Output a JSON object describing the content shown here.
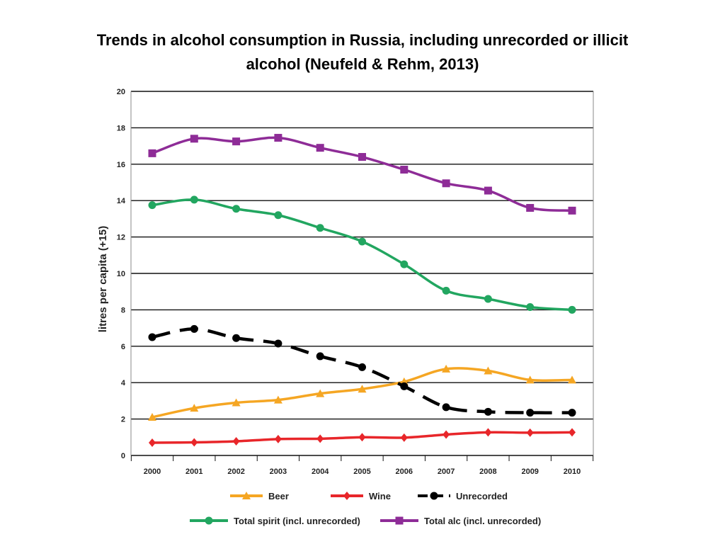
{
  "title_line1": "Trends in alcohol consumption in Russia, including unrecorded or illicit",
  "title_line2": "alcohol (Neufeld & Rehm,  2013)",
  "chart_data": {
    "type": "line",
    "ylabel": "litres per capita (+15)",
    "xlabel": "",
    "x": [
      "2000",
      "2001",
      "2002",
      "2003",
      "2004",
      "2005",
      "2006",
      "2007",
      "2008",
      "2009",
      "2010"
    ],
    "ylim": [
      0,
      20
    ],
    "yticks": [
      0,
      2,
      4,
      6,
      8,
      10,
      12,
      14,
      16,
      18,
      20
    ],
    "grid": "horizontal",
    "legend_position": "bottom",
    "series": [
      {
        "name": "Beer",
        "color": "#f5a623",
        "marker": "triangle",
        "dash": "solid",
        "values": [
          2.1,
          2.6,
          2.9,
          3.05,
          3.4,
          3.65,
          4.05,
          4.75,
          4.65,
          4.15,
          4.15
        ]
      },
      {
        "name": "Wine",
        "color": "#e8262a",
        "marker": "diamond",
        "dash": "solid",
        "values": [
          0.7,
          0.72,
          0.78,
          0.9,
          0.92,
          1.0,
          0.98,
          1.15,
          1.27,
          1.25,
          1.27
        ]
      },
      {
        "name": "Unrecorded",
        "color": "#000000",
        "marker": "circle",
        "dash": "dashed",
        "values": [
          6.5,
          6.95,
          6.45,
          6.15,
          5.45,
          4.85,
          3.8,
          2.65,
          2.4,
          2.35,
          2.35
        ]
      },
      {
        "name": "Total spirit (incl. unrecorded)",
        "color": "#22a660",
        "marker": "circle",
        "dash": "solid",
        "values": [
          13.75,
          14.05,
          13.55,
          13.2,
          12.5,
          11.75,
          10.5,
          9.05,
          8.6,
          8.15,
          8.0
        ]
      },
      {
        "name": "Total alc (incl. unrecorded)",
        "color": "#8e2c97",
        "marker": "square",
        "dash": "solid",
        "values": [
          16.6,
          17.4,
          17.25,
          17.45,
          16.9,
          16.4,
          15.7,
          14.95,
          14.55,
          13.6,
          13.45
        ]
      }
    ]
  }
}
